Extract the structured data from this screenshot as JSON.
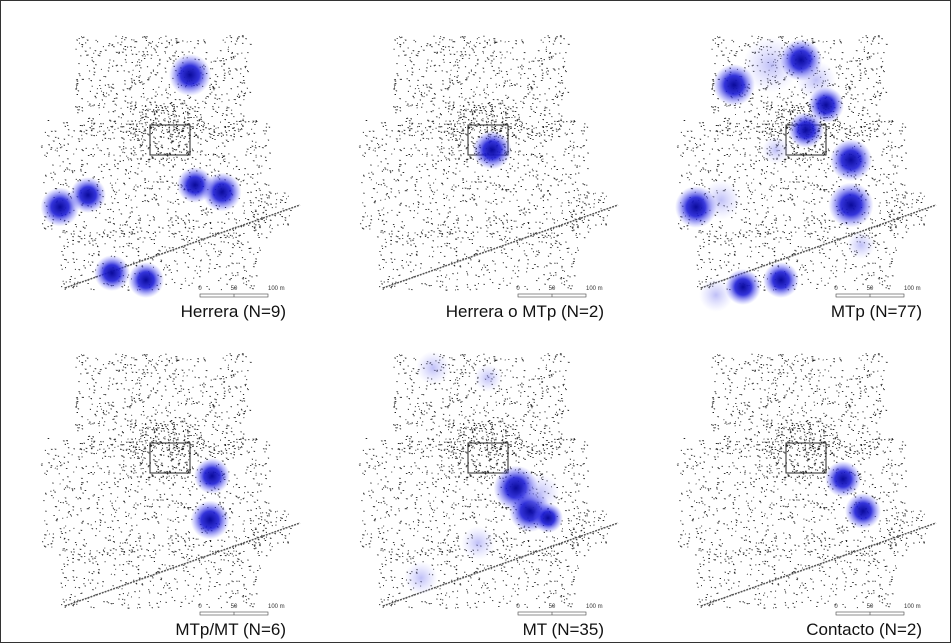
{
  "panels": [
    {
      "label": "Herrera (N=9)",
      "scale": [
        "0",
        "50",
        "100 m"
      ]
    },
    {
      "label": "Herrera o MTp (N=2)",
      "scale": [
        "0",
        "50",
        "100 m"
      ]
    },
    {
      "label": "MTp (N=77)",
      "scale": [
        "0",
        "50",
        "100 m"
      ]
    },
    {
      "label": "MTp/MT (N=6)",
      "scale": [
        "0",
        "50",
        "100 m"
      ]
    },
    {
      "label": "MT (N=35)",
      "scale": [
        "0",
        "50",
        "100 m"
      ]
    },
    {
      "label": "Contacto (N=2)",
      "scale": [
        "0",
        "50",
        "100 m"
      ]
    }
  ]
}
